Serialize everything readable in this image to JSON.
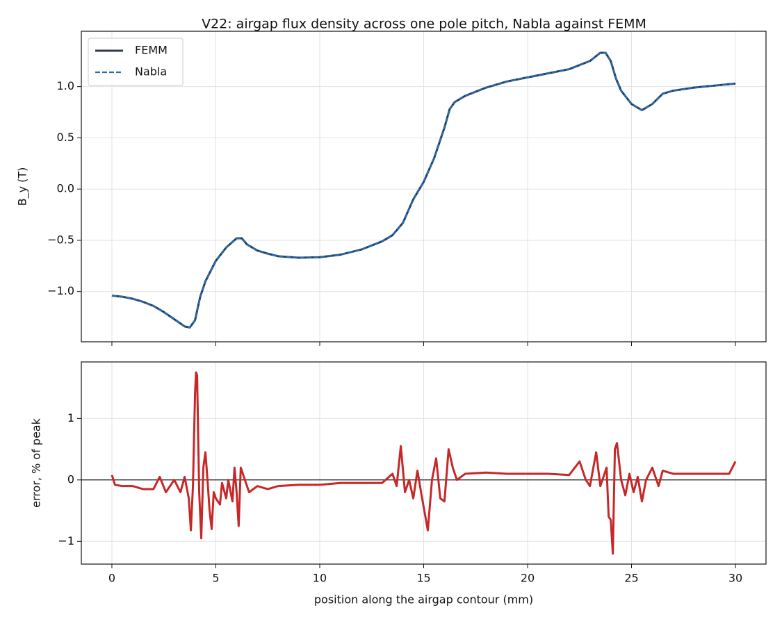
{
  "chart_data": [
    {
      "type": "line",
      "title": "V22: airgap flux density across one pole pitch, Nabla against FEMM",
      "ylabel": "B_y (T)",
      "x": [
        0,
        0.5,
        1,
        1.5,
        2,
        2.5,
        3,
        3.5,
        3.75,
        4,
        4.25,
        4.5,
        5,
        5.5,
        6,
        6.25,
        6.5,
        7,
        7.5,
        8,
        9,
        10,
        11,
        12,
        13,
        13.5,
        14,
        14.5,
        15,
        15.5,
        16,
        16.25,
        16.5,
        17,
        18,
        19,
        20,
        21,
        22,
        23,
        23.5,
        23.75,
        24,
        24.25,
        24.5,
        25,
        25.5,
        26,
        26.5,
        27,
        28,
        29,
        30
      ],
      "series": [
        {
          "name": "FEMM",
          "color": "#2e3a4a",
          "linestyle": "solid",
          "values": [
            -1.04,
            -1.05,
            -1.07,
            -1.1,
            -1.14,
            -1.2,
            -1.27,
            -1.34,
            -1.35,
            -1.28,
            -1.05,
            -0.9,
            -0.7,
            -0.57,
            -0.48,
            -0.48,
            -0.54,
            -0.6,
            -0.63,
            -0.655,
            -0.67,
            -0.665,
            -0.64,
            -0.59,
            -0.51,
            -0.45,
            -0.33,
            -0.1,
            0.07,
            0.3,
            0.6,
            0.78,
            0.85,
            0.91,
            0.99,
            1.05,
            1.09,
            1.13,
            1.17,
            1.25,
            1.33,
            1.33,
            1.25,
            1.08,
            0.96,
            0.83,
            0.77,
            0.83,
            0.93,
            0.96,
            0.99,
            1.01,
            1.03
          ]
        },
        {
          "name": "Nabla",
          "color": "#1f6fbf",
          "linestyle": "dashed",
          "values": [
            -1.04,
            -1.05,
            -1.07,
            -1.1,
            -1.14,
            -1.2,
            -1.27,
            -1.34,
            -1.35,
            -1.28,
            -1.05,
            -0.9,
            -0.7,
            -0.57,
            -0.48,
            -0.48,
            -0.54,
            -0.6,
            -0.63,
            -0.655,
            -0.67,
            -0.665,
            -0.64,
            -0.59,
            -0.51,
            -0.45,
            -0.33,
            -0.1,
            0.07,
            0.3,
            0.6,
            0.78,
            0.85,
            0.91,
            0.99,
            1.05,
            1.09,
            1.13,
            1.17,
            1.25,
            1.33,
            1.33,
            1.25,
            1.08,
            0.96,
            0.83,
            0.77,
            0.83,
            0.93,
            0.96,
            0.99,
            1.01,
            1.03
          ]
        }
      ],
      "xlim": [
        -1.47,
        31.47
      ],
      "ylim": [
        -1.49,
        1.54
      ],
      "xticks": [
        0,
        5,
        10,
        15,
        20,
        25,
        30
      ],
      "yticks": [
        {
          "value": -1.0,
          "label": "−1.0"
        },
        {
          "value": -0.5,
          "label": "−0.5"
        },
        {
          "value": 0,
          "label": "0.0"
        },
        0.5,
        {
          "value": 1.0,
          "label": "1.0"
        }
      ],
      "grid": true,
      "legend": "upper left"
    },
    {
      "type": "line",
      "ylabel": "error, % of peak",
      "xlabel": "position along the airgap contour (mm)",
      "x": [
        0,
        0.15,
        0.5,
        1,
        1.5,
        2,
        2.3,
        2.6,
        3,
        3.3,
        3.5,
        3.7,
        3.8,
        3.9,
        4.0,
        4.05,
        4.1,
        4.2,
        4.3,
        4.4,
        4.5,
        4.6,
        4.7,
        4.8,
        4.9,
        5.0,
        5.2,
        5.3,
        5.5,
        5.6,
        5.8,
        5.9,
        6.0,
        6.1,
        6.2,
        6.4,
        6.6,
        7,
        7.5,
        8,
        9,
        10,
        11,
        12,
        13,
        13.5,
        13.7,
        13.9,
        14.1,
        14.3,
        14.5,
        14.7,
        14.9,
        15.2,
        15.4,
        15.6,
        15.8,
        16.0,
        16.2,
        16.4,
        16.6,
        17,
        18,
        19,
        20,
        21,
        22,
        22.5,
        22.8,
        23,
        23.3,
        23.5,
        23.8,
        23.9,
        24.0,
        24.1,
        24.2,
        24.3,
        24.5,
        24.7,
        24.9,
        25.1,
        25.3,
        25.5,
        25.7,
        26,
        26.3,
        26.5,
        27,
        28,
        29,
        29.7,
        30
      ],
      "series": [
        {
          "name": "error",
          "color": "#c62828",
          "linestyle": "solid",
          "values": [
            0.08,
            -0.08,
            -0.1,
            -0.1,
            -0.15,
            -0.15,
            0.05,
            -0.2,
            0.0,
            -0.2,
            0.05,
            -0.3,
            -0.82,
            -0.1,
            1.4,
            1.75,
            1.7,
            -0.2,
            -0.95,
            0.2,
            0.45,
            0.0,
            -0.5,
            -0.8,
            -0.2,
            -0.3,
            -0.4,
            -0.05,
            -0.3,
            0.0,
            -0.35,
            0.2,
            -0.2,
            -0.75,
            0.2,
            0.0,
            -0.2,
            -0.1,
            -0.15,
            -0.1,
            -0.08,
            -0.08,
            -0.05,
            -0.05,
            -0.05,
            0.1,
            -0.1,
            0.55,
            -0.2,
            0.0,
            -0.3,
            0.15,
            -0.25,
            -0.82,
            0.0,
            0.35,
            -0.3,
            -0.35,
            0.5,
            0.2,
            0.0,
            0.1,
            0.12,
            0.1,
            0.1,
            0.1,
            0.08,
            0.3,
            0.0,
            -0.1,
            0.45,
            -0.1,
            0.2,
            -0.6,
            -0.65,
            -1.2,
            0.5,
            0.6,
            0.0,
            -0.25,
            0.1,
            -0.2,
            0.05,
            -0.35,
            0.0,
            0.2,
            -0.1,
            0.15,
            0.1,
            0.1,
            0.1,
            0.1,
            0.3
          ]
        }
      ],
      "xlim": [
        -1.47,
        31.47
      ],
      "ylim": [
        -1.37,
        1.92
      ],
      "xticks": [
        0,
        5,
        10,
        15,
        20,
        25,
        30
      ],
      "yticks": [
        {
          "value": -1,
          "label": "−1"
        },
        0,
        1
      ],
      "hline": 0,
      "grid": true
    }
  ]
}
